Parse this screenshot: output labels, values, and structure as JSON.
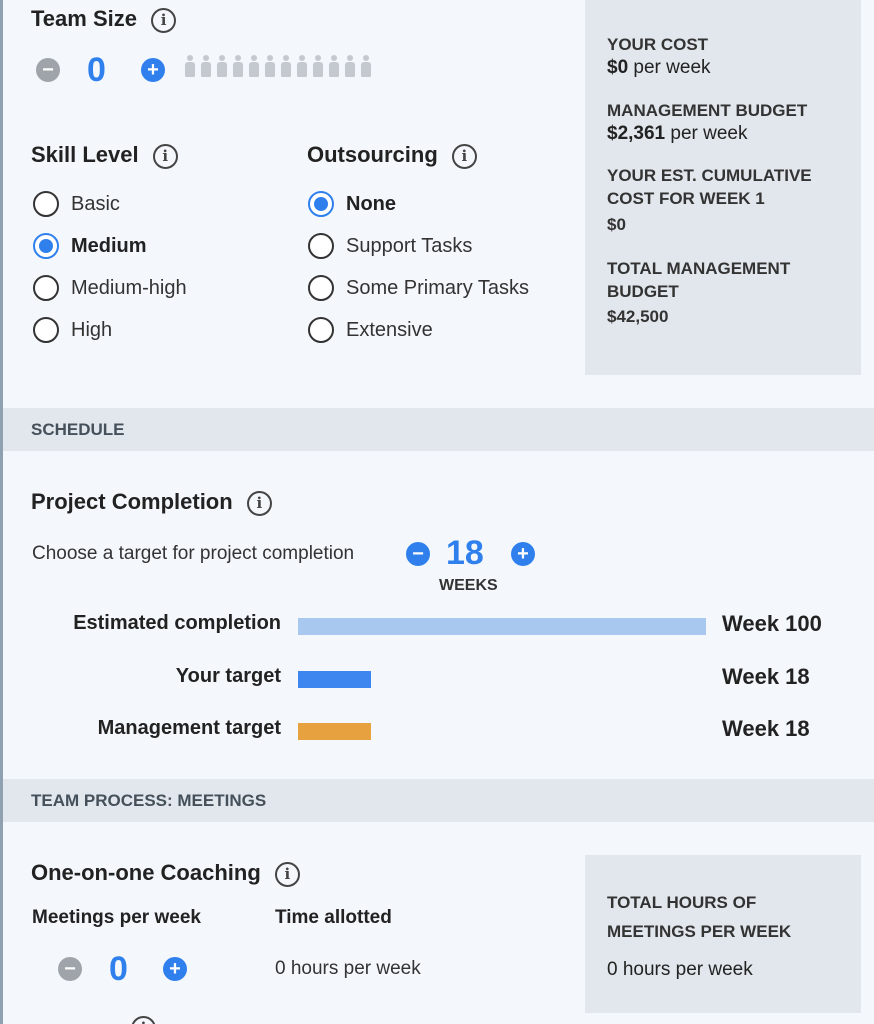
{
  "team_size": {
    "title": "Team Size",
    "value": "0",
    "minus": "−",
    "plus": "+",
    "people_count": 12
  },
  "skill_level": {
    "title": "Skill Level",
    "options": [
      "Basic",
      "Medium",
      "Medium-high",
      "High"
    ],
    "selected": "Medium"
  },
  "outsourcing": {
    "title": "Outsourcing",
    "options": [
      "None",
      "Support Tasks",
      "Some Primary Tasks",
      "Extensive"
    ],
    "selected": "None"
  },
  "cost_panel": {
    "your_cost_label": "YOUR COST",
    "your_cost_value": "$0",
    "your_cost_unit": " per week",
    "mgmt_budget_label": "MANAGEMENT BUDGET",
    "mgmt_budget_value": "$2,361",
    "mgmt_budget_unit": " per week",
    "cumulative_label_1": "YOUR EST. CUMULATIVE",
    "cumulative_label_2": "COST FOR WEEK 1",
    "cumulative_value": "$0",
    "total_budget_label_1": "TOTAL MANAGEMENT",
    "total_budget_label_2": "BUDGET",
    "total_budget_value": "$42,500"
  },
  "schedule": {
    "section_label": "SCHEDULE",
    "title": "Project Completion",
    "prompt": "Choose a target for project completion",
    "weeks_value": "18",
    "weeks_label": "WEEKS",
    "bars": [
      {
        "label": "Estimated completion",
        "value_text": "Week 100",
        "week": 100,
        "color": "#a8c8f0"
      },
      {
        "label": "Your target",
        "value_text": "Week 18",
        "week": 18,
        "color": "#3d86f0"
      },
      {
        "label": "Management target",
        "value_text": "Week 18",
        "week": 18,
        "color": "#e8a13f"
      }
    ]
  },
  "meetings": {
    "section_label": "TEAM PROCESS: MEETINGS",
    "title": "One-on-one Coaching",
    "meetings_per_week_label": "Meetings per week",
    "time_allotted_label": "Time allotted",
    "meetings_value": "0",
    "time_value": "0 hours per week",
    "total_label_1": "TOTAL HOURS OF",
    "total_label_2": "MEETINGS PER WEEK",
    "total_value": "0 hours per week"
  }
}
